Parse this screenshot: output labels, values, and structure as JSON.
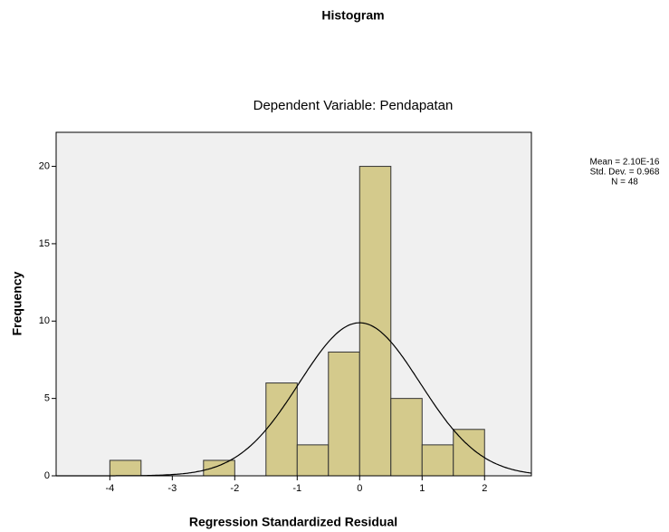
{
  "chart_data": {
    "type": "histogram",
    "title": "Histogram",
    "subtitle": "Dependent Variable: Pendapatan",
    "xlabel": "Regression Standardized Residual",
    "ylabel": "Frequency",
    "bins": [
      -4,
      -3.5,
      -3,
      -2.5,
      -2,
      -1.5,
      -1,
      -0.5,
      0,
      0.5,
      1,
      1.5,
      2
    ],
    "values": [
      1,
      0,
      0,
      1,
      0,
      6,
      2,
      8,
      20,
      5,
      2,
      3
    ],
    "color": "#d4ca8c",
    "xlim": [
      -4.86,
      2.75
    ],
    "ylim": [
      0,
      22.2
    ],
    "xticks": [
      -4,
      -3,
      -2,
      -1,
      0,
      1,
      2
    ],
    "yticks": [
      0,
      5,
      10,
      15,
      20
    ],
    "stats": {
      "mean": {
        "value": 2.1e-16,
        "label": "Mean = 2.10E-16"
      },
      "std": {
        "value": 0.968,
        "label": "Std. Dev. = 0.968"
      },
      "n": {
        "value": 48,
        "label": "N = 48"
      }
    }
  }
}
